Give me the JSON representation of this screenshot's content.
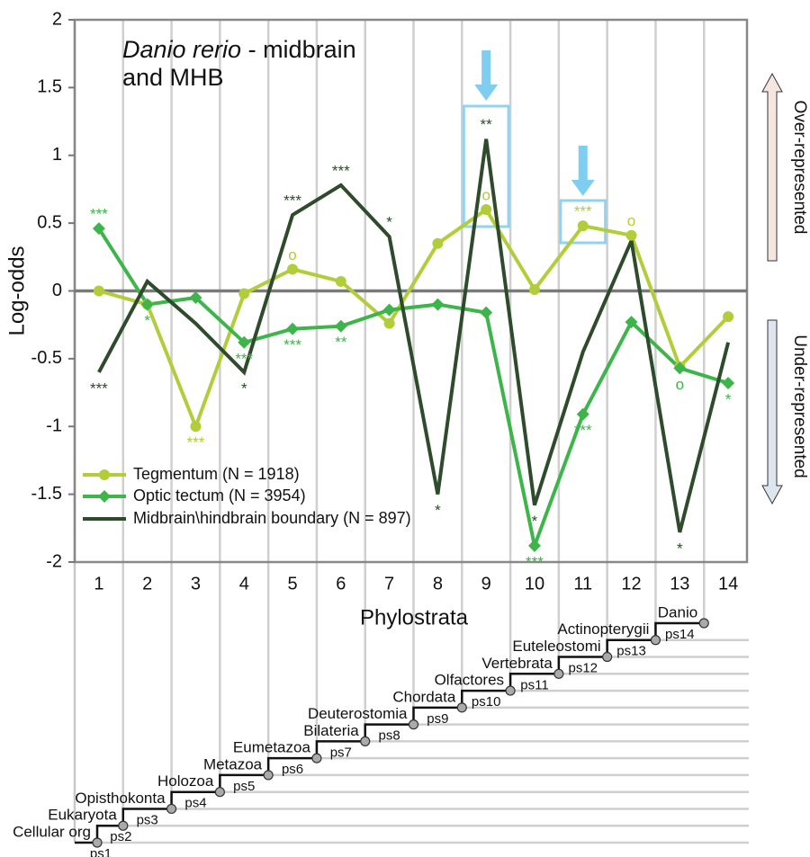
{
  "chart_data": {
    "type": "line",
    "title_species": "Danio rerio",
    "title_rest": "- midbrain and MHB",
    "x_label": "Phylostrata",
    "y_label": "Log-odds",
    "categories": [
      "1",
      "2",
      "3",
      "4",
      "5",
      "6",
      "7",
      "8",
      "9",
      "10",
      "11",
      "12",
      "13",
      "14"
    ],
    "ylim": [
      -2,
      2
    ],
    "yticks": [
      -2,
      -1.5,
      -1,
      -0.5,
      0,
      0.5,
      1,
      1.5,
      2
    ],
    "legend": "lower left",
    "series": [
      {
        "name": "Tegmentum (N = 1918)",
        "color": "#b2cd3a",
        "marker": "circle",
        "values": [
          0,
          -0.1,
          -1.0,
          -0.02,
          0.16,
          0.07,
          -0.24,
          0.35,
          0.6,
          0.01,
          0.48,
          0.41,
          -0.56,
          -0.19
        ],
        "significance": [
          null,
          null,
          "***",
          null,
          "o",
          null,
          null,
          null,
          "o",
          null,
          "***",
          "o",
          null,
          null
        ]
      },
      {
        "name": "Optic tectum (N = 3954)",
        "color": "#3db54a",
        "marker": "diamond",
        "values": [
          0.46,
          -0.1,
          -0.05,
          -0.38,
          -0.28,
          -0.26,
          -0.14,
          -0.1,
          -0.16,
          -1.88,
          -0.91,
          -0.23,
          -0.57,
          -0.68
        ],
        "significance": [
          "***",
          "*",
          null,
          "***",
          "***",
          "**",
          null,
          null,
          null,
          "***",
          "***",
          null,
          "o",
          "*"
        ]
      },
      {
        "name": "Midbrain\\hindbrain boundary (N = 897)",
        "color": "#2e4b2b",
        "marker": "none",
        "values": [
          -0.6,
          0.07,
          -0.24,
          -0.6,
          0.56,
          0.78,
          0.4,
          -1.5,
          1.12,
          -1.58,
          -0.45,
          0.37,
          -1.78,
          -0.38
        ],
        "significance": [
          "***",
          null,
          null,
          "*",
          "***",
          "***",
          "*",
          "*",
          "**",
          "*",
          null,
          null,
          "*",
          null
        ]
      }
    ],
    "side_labels": {
      "over": "Over-represented",
      "under": "Under-represented"
    }
  },
  "phylogeny": [
    {
      "clade": "Cellular org",
      "stratum": "ps1"
    },
    {
      "clade": "Eukaryota",
      "stratum": "ps2"
    },
    {
      "clade": "Opisthokonta",
      "stratum": "ps3"
    },
    {
      "clade": "Holozoa",
      "stratum": "ps4"
    },
    {
      "clade": "Metazoa",
      "stratum": "ps5"
    },
    {
      "clade": "Eumetazoa",
      "stratum": "ps6"
    },
    {
      "clade": "Bilateria",
      "stratum": "ps7"
    },
    {
      "clade": "Deuterostomia",
      "stratum": "ps8"
    },
    {
      "clade": "Chordata",
      "stratum": "ps9"
    },
    {
      "clade": "Olfactores",
      "stratum": "ps10"
    },
    {
      "clade": "Vertebrata",
      "stratum": "ps11"
    },
    {
      "clade": "Euteleostomi",
      "stratum": "ps12"
    },
    {
      "clade": "Actinopterygii",
      "stratum": "ps13"
    },
    {
      "clade": "Danio",
      "stratum": "ps14"
    }
  ]
}
